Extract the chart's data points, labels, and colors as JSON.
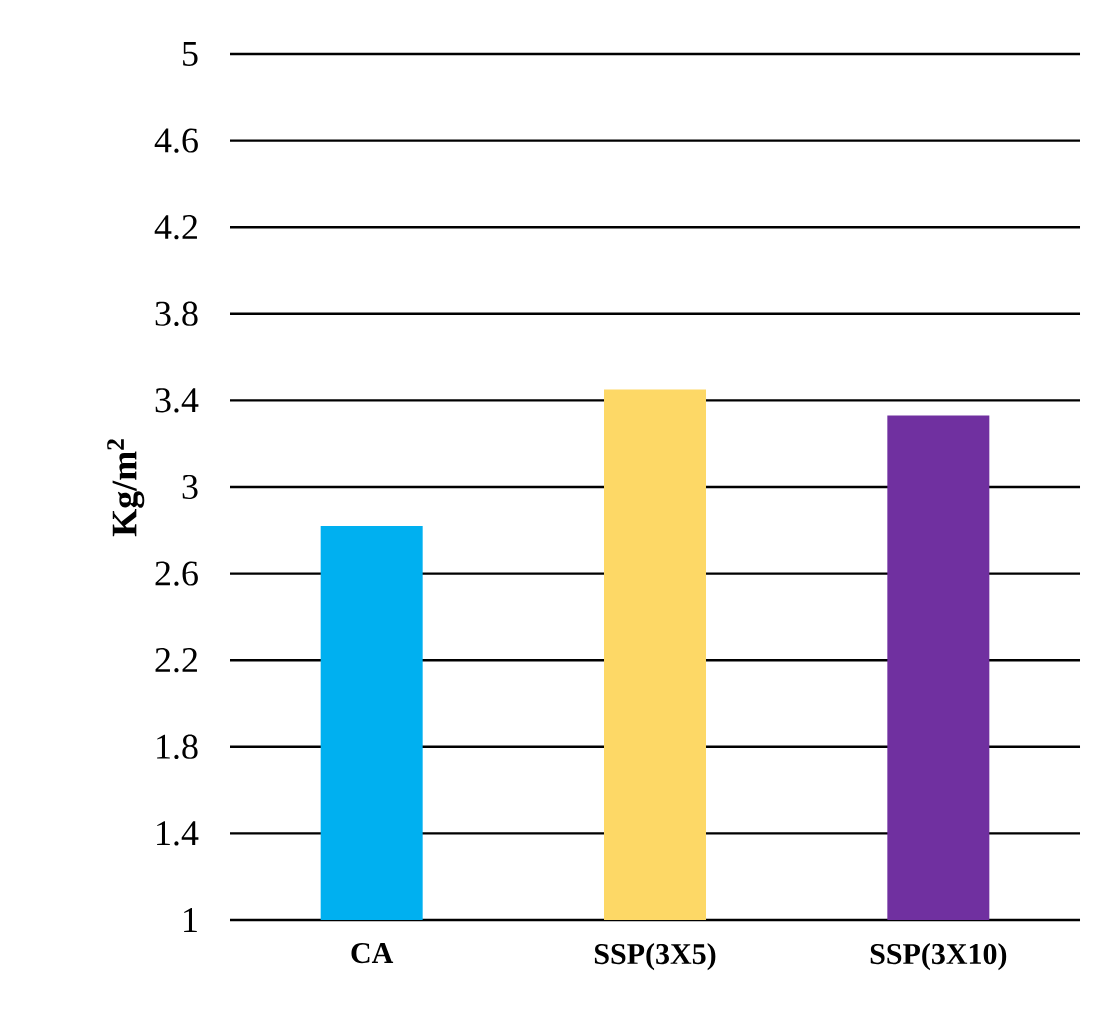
{
  "chart_data": {
    "type": "bar",
    "ylabel": "Kg/m$^{2}$",
    "categories": [
      "CA",
      "SSP(3X5)",
      "SSP(3X10)"
    ],
    "values": [
      2.82,
      3.45,
      3.33
    ],
    "colors": [
      "#00b0f0",
      "#fdd866",
      "#7030a0"
    ],
    "ylim": [
      1,
      5
    ],
    "yticks": [
      1,
      1.4,
      1.8,
      2.2,
      2.6,
      3,
      3.4,
      3.8,
      4.2,
      4.6,
      5
    ],
    "grid": "y"
  }
}
